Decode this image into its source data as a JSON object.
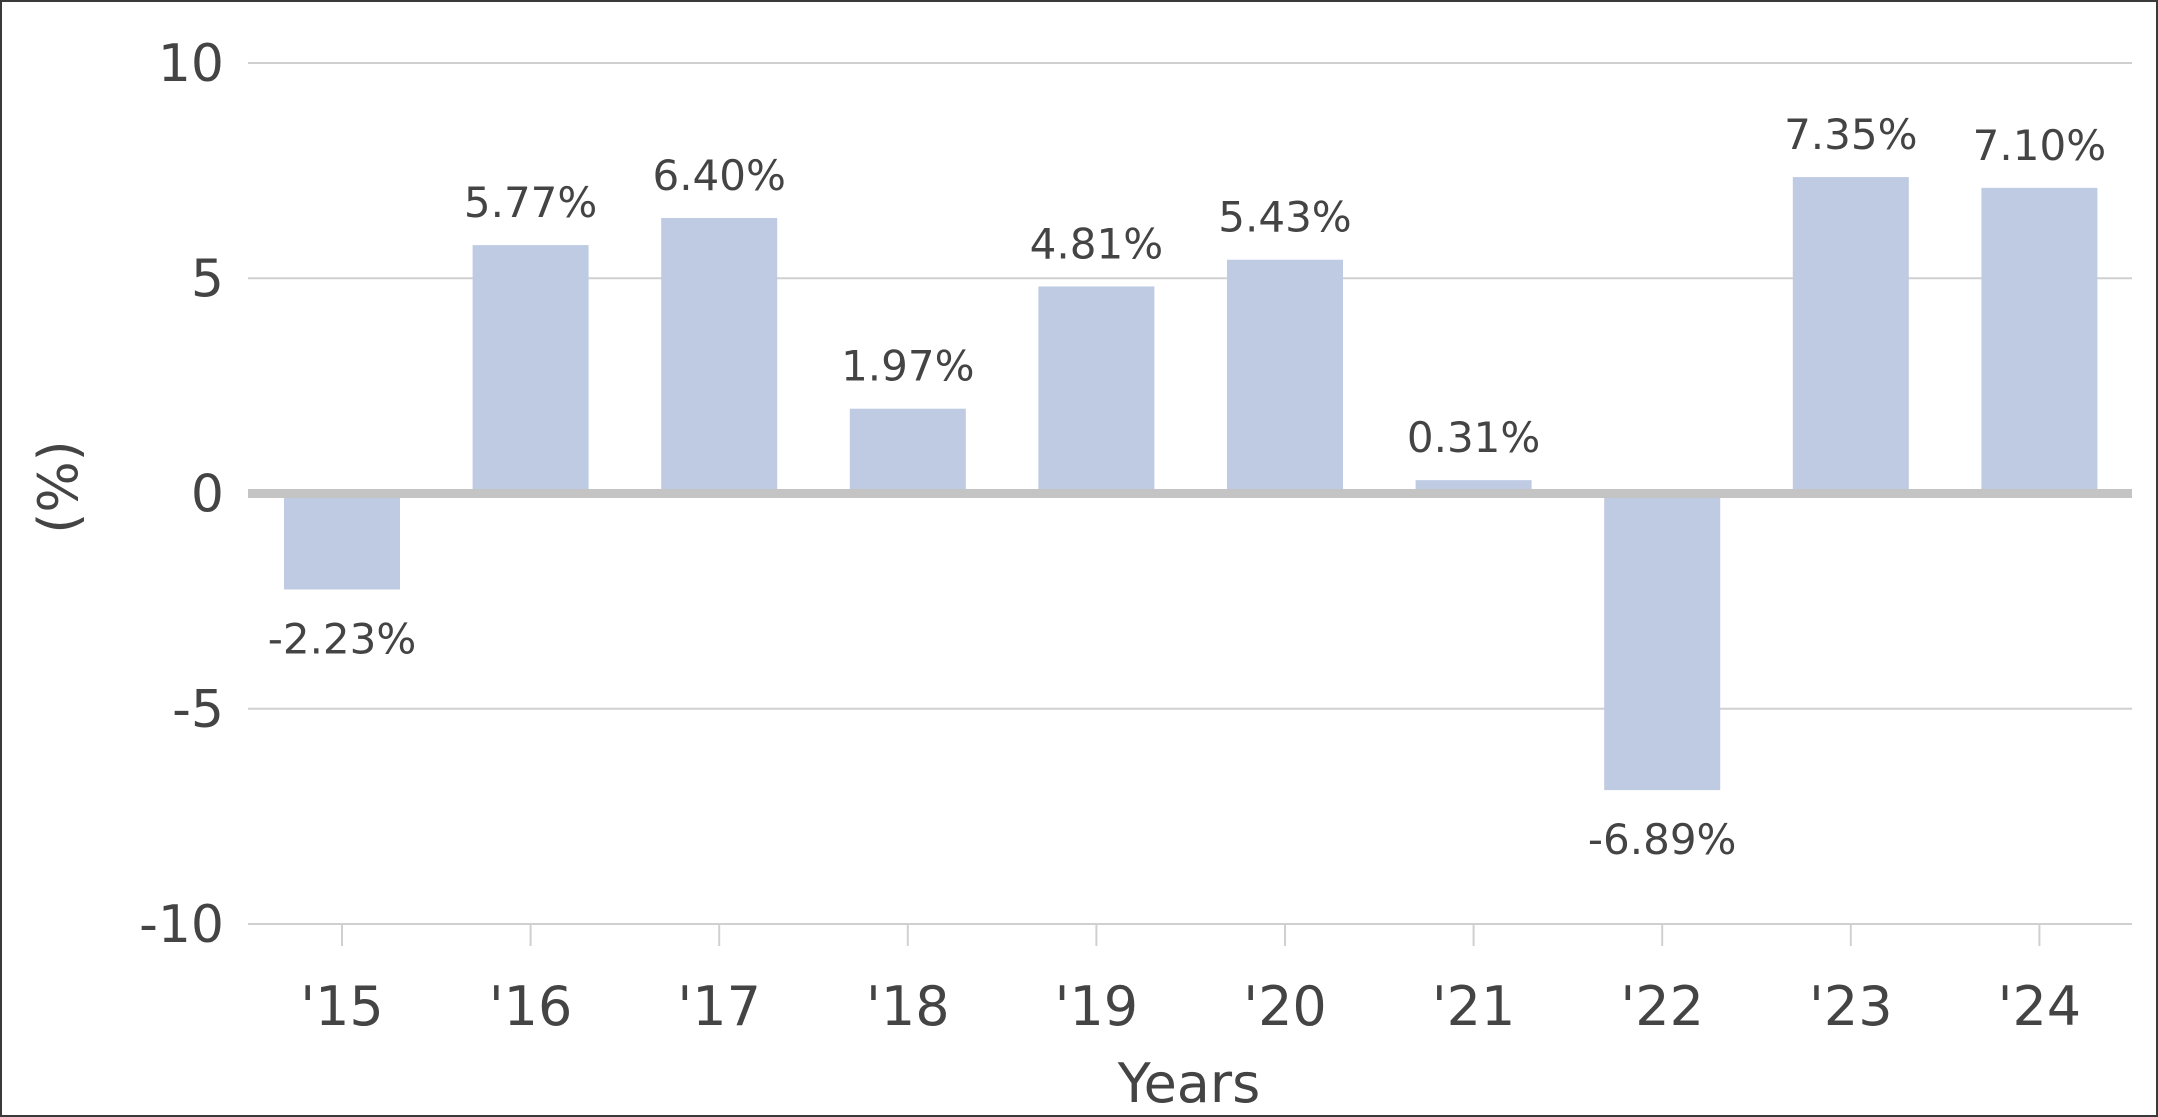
{
  "chart_data": {
    "type": "bar",
    "title": "",
    "xlabel": "Years",
    "ylabel": "(%)",
    "categories": [
      "'15",
      "'16",
      "'17",
      "'18",
      "'19",
      "'20",
      "'21",
      "'22",
      "'23",
      "'24"
    ],
    "values": [
      -2.23,
      5.77,
      6.4,
      1.97,
      4.81,
      5.43,
      0.31,
      -6.89,
      7.35,
      7.1
    ],
    "data_labels": [
      "-2.23%",
      "5.77%",
      "6.40%",
      "1.97%",
      "4.81%",
      "5.43%",
      "0.31%",
      "-6.89%",
      "7.35%",
      "7.10%"
    ],
    "ylim": [
      -10,
      10
    ],
    "yticks": [
      10,
      5,
      0,
      -5,
      -10
    ],
    "ytick_labels": [
      "10",
      "5",
      "0",
      "-5",
      "-10"
    ],
    "grid": true,
    "legend": "none"
  },
  "colors": {
    "bar": "#bfcbe3",
    "gridline": "#d0d0d0",
    "zero_line": "#c4c4c4",
    "text": "#444444",
    "border": "#3a3a3a"
  }
}
